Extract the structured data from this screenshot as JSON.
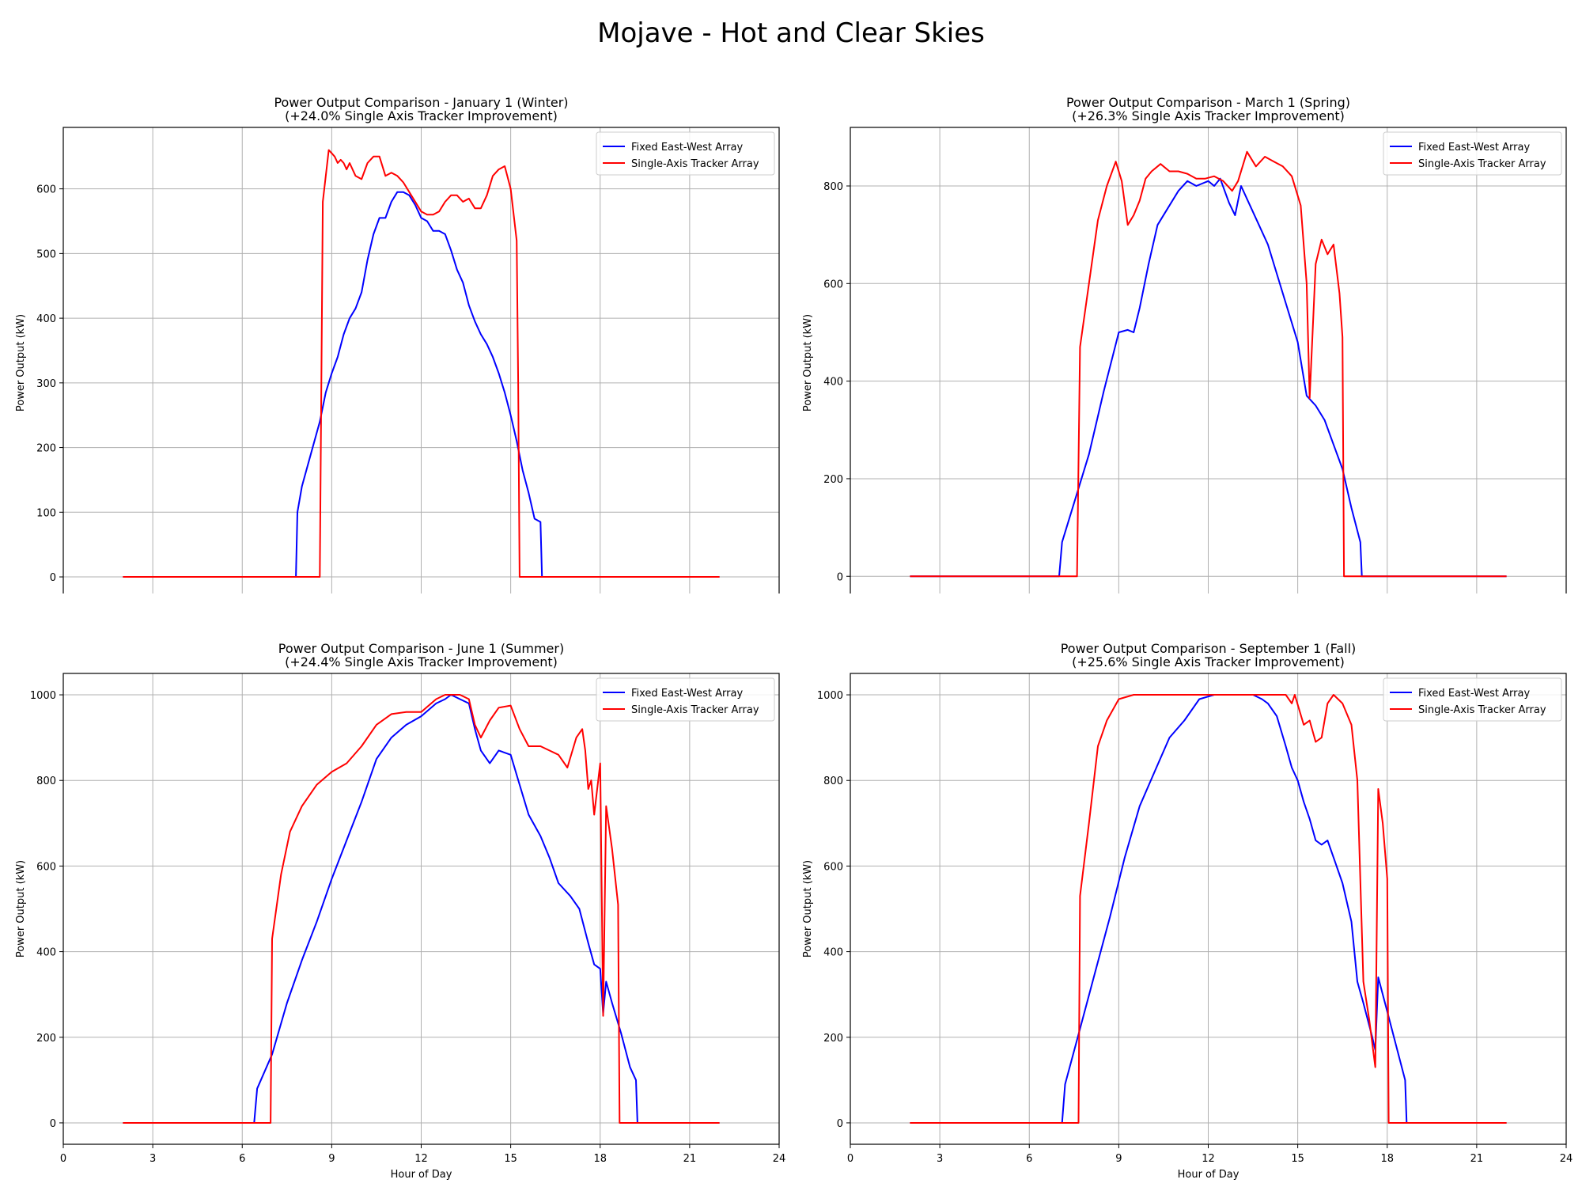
{
  "suptitle": "Mojave - Hot and Clear Skies",
  "chart_data": [
    {
      "type": "line",
      "title": "Power Output Comparison - January 1 (Winter)",
      "subtitle": "(+24.0% Single Axis Tracker Improvement)",
      "xlabel": "Hour of Day",
      "ylabel": "Power Output (kW)",
      "xlim": [
        0,
        24
      ],
      "ylim": [
        -33,
        695
      ],
      "xticks": [
        0,
        3,
        6,
        9,
        12,
        15,
        18,
        21,
        24
      ],
      "yticks": [
        0,
        100,
        200,
        300,
        400,
        500,
        600
      ],
      "grid": true,
      "legend_position": "top-right",
      "series": [
        {
          "name": "Fixed East-West Array",
          "color": "#0000ff",
          "x": [
            2,
            7.8,
            7.85,
            8.0,
            8.3,
            8.6,
            8.8,
            9.0,
            9.2,
            9.4,
            9.6,
            9.8,
            10.0,
            10.2,
            10.4,
            10.6,
            10.8,
            11.0,
            11.2,
            11.4,
            11.6,
            11.8,
            12.0,
            12.2,
            12.4,
            12.6,
            12.8,
            13.0,
            13.2,
            13.4,
            13.6,
            13.8,
            14.0,
            14.2,
            14.4,
            14.6,
            14.8,
            15.0,
            15.2,
            15.4,
            15.6,
            15.8,
            16.0,
            16.05,
            22
          ],
          "y": [
            0,
            0,
            100,
            140,
            190,
            240,
            285,
            315,
            340,
            375,
            400,
            415,
            440,
            490,
            530,
            555,
            555,
            580,
            595,
            595,
            590,
            575,
            555,
            550,
            535,
            535,
            530,
            505,
            475,
            455,
            420,
            395,
            375,
            360,
            340,
            315,
            285,
            250,
            210,
            165,
            130,
            90,
            85,
            0,
            0
          ]
        },
        {
          "name": "Single-Axis Tracker Array",
          "color": "#ff0000",
          "x": [
            2,
            8.6,
            8.7,
            8.9,
            9.0,
            9.1,
            9.2,
            9.3,
            9.4,
            9.5,
            9.6,
            9.8,
            10.0,
            10.2,
            10.4,
            10.6,
            10.8,
            11.0,
            11.2,
            11.4,
            11.6,
            11.8,
            12.0,
            12.2,
            12.4,
            12.6,
            12.8,
            13.0,
            13.2,
            13.4,
            13.6,
            13.8,
            14.0,
            14.2,
            14.4,
            14.6,
            14.8,
            15.0,
            15.2,
            15.25,
            15.3,
            22
          ],
          "y": [
            0,
            0,
            580,
            660,
            655,
            650,
            640,
            645,
            640,
            630,
            640,
            620,
            615,
            640,
            650,
            650,
            620,
            625,
            620,
            610,
            595,
            580,
            565,
            560,
            560,
            565,
            580,
            590,
            590,
            580,
            585,
            570,
            570,
            590,
            620,
            630,
            635,
            600,
            520,
            300,
            0,
            0
          ]
        }
      ]
    },
    {
      "type": "line",
      "title": "Power Output Comparison - March 1 (Spring)",
      "subtitle": "(+26.3% Single Axis Tracker Improvement)",
      "xlabel": "Hour of Day",
      "ylabel": "Power Output (kW)",
      "xlim": [
        0,
        24
      ],
      "ylim": [
        -45,
        920
      ],
      "xticks": [
        0,
        3,
        6,
        9,
        12,
        15,
        18,
        21,
        24
      ],
      "yticks": [
        0,
        200,
        400,
        600,
        800
      ],
      "grid": true,
      "legend_position": "top-right",
      "series": [
        {
          "name": "Fixed East-West Array",
          "color": "#0000ff",
          "x": [
            2,
            7.0,
            7.1,
            7.5,
            8.0,
            8.5,
            9.0,
            9.3,
            9.5,
            9.7,
            10.0,
            10.3,
            10.6,
            11.0,
            11.3,
            11.6,
            12.0,
            12.2,
            12.4,
            12.7,
            12.9,
            13.1,
            13.4,
            13.7,
            14.0,
            14.3,
            14.6,
            15.0,
            15.3,
            15.6,
            15.9,
            16.2,
            16.5,
            16.8,
            17.1,
            17.15,
            22
          ],
          "y": [
            0,
            0,
            70,
            150,
            250,
            380,
            500,
            505,
            500,
            550,
            640,
            720,
            750,
            790,
            810,
            800,
            810,
            800,
            815,
            765,
            740,
            800,
            760,
            720,
            680,
            620,
            560,
            480,
            370,
            350,
            320,
            270,
            220,
            140,
            70,
            0,
            0
          ]
        },
        {
          "name": "Single-Axis Tracker Array",
          "color": "#ff0000",
          "x": [
            2,
            7.6,
            7.7,
            8.0,
            8.3,
            8.6,
            8.9,
            9.1,
            9.3,
            9.5,
            9.7,
            9.9,
            10.1,
            10.4,
            10.7,
            11.0,
            11.3,
            11.6,
            11.9,
            12.2,
            12.5,
            12.8,
            13.0,
            13.3,
            13.6,
            13.9,
            14.2,
            14.5,
            14.8,
            15.1,
            15.3,
            15.4,
            15.6,
            15.8,
            16.0,
            16.2,
            16.4,
            16.5,
            16.55,
            22
          ],
          "y": [
            0,
            0,
            470,
            600,
            730,
            800,
            850,
            810,
            720,
            740,
            770,
            815,
            830,
            845,
            830,
            830,
            825,
            815,
            815,
            820,
            810,
            790,
            810,
            870,
            840,
            860,
            850,
            840,
            820,
            760,
            600,
            365,
            640,
            690,
            660,
            680,
            580,
            490,
            0,
            0
          ]
        }
      ]
    },
    {
      "type": "line",
      "title": "Power Output Comparison - June 1 (Summer)",
      "subtitle": "(+24.4% Single Axis Tracker Improvement)",
      "xlabel": "Hour of Day",
      "ylabel": "Power Output (kW)",
      "xlim": [
        0,
        24
      ],
      "ylim": [
        -50,
        1050
      ],
      "xticks": [
        0,
        3,
        6,
        9,
        12,
        15,
        18,
        21,
        24
      ],
      "yticks": [
        0,
        200,
        400,
        600,
        800,
        1000
      ],
      "grid": true,
      "legend_position": "top-right",
      "series": [
        {
          "name": "Fixed East-West Array",
          "color": "#0000ff",
          "x": [
            2,
            6.4,
            6.5,
            7.0,
            7.5,
            8.0,
            8.5,
            9.0,
            9.5,
            10.0,
            10.5,
            11.0,
            11.5,
            12.0,
            12.5,
            12.8,
            13.0,
            13.3,
            13.6,
            13.8,
            14.0,
            14.3,
            14.6,
            15.0,
            15.3,
            15.6,
            16.0,
            16.3,
            16.6,
            17.0,
            17.3,
            17.6,
            17.8,
            18.0,
            18.1,
            18.2,
            18.4,
            18.7,
            19.0,
            19.2,
            19.25,
            22
          ],
          "y": [
            0,
            0,
            80,
            160,
            280,
            380,
            470,
            570,
            660,
            750,
            850,
            900,
            930,
            950,
            980,
            990,
            1000,
            990,
            980,
            920,
            870,
            840,
            870,
            860,
            790,
            720,
            670,
            620,
            560,
            530,
            500,
            420,
            370,
            360,
            255,
            330,
            280,
            210,
            130,
            100,
            0,
            0
          ]
        },
        {
          "name": "Single-Axis Tracker Array",
          "color": "#ff0000",
          "x": [
            2,
            6.95,
            7.0,
            7.3,
            7.6,
            8.0,
            8.5,
            9.0,
            9.5,
            10.0,
            10.5,
            11.0,
            11.5,
            12.0,
            12.5,
            12.8,
            13.0,
            13.3,
            13.6,
            13.8,
            14.0,
            14.3,
            14.6,
            15.0,
            15.3,
            15.6,
            16.0,
            16.3,
            16.6,
            16.9,
            17.2,
            17.4,
            17.5,
            17.6,
            17.7,
            17.8,
            17.9,
            18.0,
            18.1,
            18.2,
            18.4,
            18.6,
            18.65,
            22
          ],
          "y": [
            0,
            0,
            430,
            580,
            680,
            740,
            790,
            820,
            840,
            880,
            930,
            955,
            960,
            960,
            990,
            1000,
            1000,
            1000,
            990,
            930,
            900,
            940,
            970,
            975,
            920,
            880,
            880,
            870,
            860,
            830,
            900,
            920,
            870,
            780,
            800,
            720,
            780,
            840,
            250,
            740,
            640,
            510,
            0,
            0
          ]
        }
      ]
    },
    {
      "type": "line",
      "title": "Power Output Comparison - September 1 (Fall)",
      "subtitle": "(+25.6% Single Axis Tracker Improvement)",
      "xlabel": "Hour of Day",
      "ylabel": "Power Output (kW)",
      "xlim": [
        0,
        24
      ],
      "ylim": [
        -50,
        1050
      ],
      "xticks": [
        0,
        3,
        6,
        9,
        12,
        15,
        18,
        21,
        24
      ],
      "yticks": [
        0,
        200,
        400,
        600,
        800,
        1000
      ],
      "grid": true,
      "legend_position": "top-right",
      "series": [
        {
          "name": "Fixed East-West Array",
          "color": "#0000ff",
          "x": [
            2,
            7.1,
            7.2,
            7.7,
            8.2,
            8.7,
            9.2,
            9.7,
            10.2,
            10.7,
            11.2,
            11.7,
            12.2,
            12.5,
            13.0,
            13.5,
            13.8,
            14.0,
            14.3,
            14.6,
            14.8,
            15.0,
            15.2,
            15.4,
            15.6,
            15.8,
            16.0,
            16.2,
            16.5,
            16.8,
            17.0,
            17.2,
            17.5,
            17.6,
            17.7,
            18.0,
            18.3,
            18.6,
            18.65,
            22
          ],
          "y": [
            0,
            0,
            90,
            220,
            350,
            480,
            620,
            740,
            820,
            900,
            940,
            990,
            1000,
            1000,
            1000,
            1000,
            990,
            980,
            950,
            880,
            830,
            800,
            750,
            710,
            660,
            650,
            660,
            620,
            560,
            470,
            330,
            280,
            200,
            170,
            340,
            260,
            180,
            100,
            0,
            0
          ]
        },
        {
          "name": "Single-Axis Tracker Array",
          "color": "#ff0000",
          "x": [
            2,
            7.65,
            7.7,
            8.0,
            8.3,
            8.6,
            9.0,
            9.5,
            10.0,
            11.0,
            12.0,
            13.0,
            14.0,
            14.6,
            14.8,
            14.9,
            15.2,
            15.4,
            15.6,
            15.8,
            16.0,
            16.2,
            16.5,
            16.8,
            17.0,
            17.2,
            17.4,
            17.6,
            17.7,
            17.85,
            18.0,
            18.05,
            22
          ],
          "y": [
            0,
            0,
            530,
            700,
            880,
            940,
            990,
            1000,
            1000,
            1000,
            1000,
            1000,
            1000,
            1000,
            980,
            1000,
            930,
            940,
            890,
            900,
            980,
            1000,
            980,
            930,
            800,
            330,
            240,
            130,
            780,
            700,
            570,
            0,
            0
          ]
        }
      ]
    }
  ]
}
